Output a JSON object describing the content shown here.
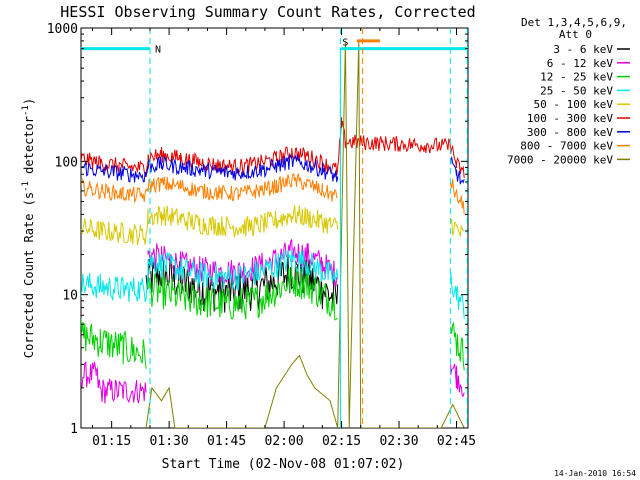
{
  "chart_data": {
    "type": "line",
    "title": "HESSI Observing Summary Count Rates, Corrected",
    "xlabel": "Start Time (02-Nov-08 01:07:02)",
    "ylabel": "Corrected Count Rate (s",
    "ylabel_sup": "-1",
    "ylabel_tail": " detector",
    "ylabel_end": ")",
    "xlim": [
      67.0,
      168.0
    ],
    "ylim": [
      1,
      1000
    ],
    "yscale": "log",
    "x_ticks": [
      75,
      90,
      105,
      120,
      135,
      150,
      165
    ],
    "x_tick_labels": [
      "01:15",
      "01:30",
      "01:45",
      "02:00",
      "02:15",
      "02:30",
      "02:45"
    ],
    "y_ticks": [
      1,
      10,
      100,
      1000
    ],
    "y_tick_labels": [
      "1",
      "10",
      "100",
      "1000"
    ],
    "legend": {
      "placement": "right",
      "header_line1": "Det 1,3,4,5,6,9,",
      "header_line2": "Att 0",
      "entries": [
        {
          "label": "3 - 6 keV",
          "color": "#000000"
        },
        {
          "label": "6 - 12 keV",
          "color": "#e000e0"
        },
        {
          "label": "12 - 25 keV",
          "color": "#00d000"
        },
        {
          "label": "25 - 50 keV",
          "color": "#00e8e8"
        },
        {
          "label": "50 - 100 keV",
          "color": "#d8c800"
        },
        {
          "label": "100 - 300 keV",
          "color": "#e00000"
        },
        {
          "label": "300 - 800 keV",
          "color": "#0000e0"
        },
        {
          "label": "800 - 7000 keV",
          "color": "#ff8000"
        },
        {
          "label": "7000 - 20000 keV",
          "color": "#808000"
        }
      ]
    },
    "annotations": {
      "night_label": "N",
      "saa_label": "S",
      "night_bar": {
        "x": [
          67.0,
          85.0
        ],
        "y": 700
      },
      "saa_bar": {
        "x": [
          134.7,
          168.0
        ],
        "y": 700
      },
      "saa_orange_bar": {
        "x": [
          139.0,
          145.0
        ],
        "y": 800
      },
      "dashed_lines_x": [
        85.0,
        134.7,
        140.5,
        163.4,
        167.8
      ],
      "solid_line_x": 134.7
    },
    "series": [
      {
        "name": "3 - 6 keV",
        "color": "#000000",
        "x": [
          84,
          88,
          93,
          98,
          103,
          108,
          113,
          118,
          122,
          126,
          130,
          134
        ],
        "y": [
          12.5,
          14.5,
          12.5,
          11,
          10.5,
          10.5,
          11,
          13,
          15,
          13.5,
          11,
          9
        ]
      },
      {
        "name": "6 - 12 keV",
        "color": "#e000e0",
        "x": [
          67,
          71,
          72,
          84,
          84.5,
          88,
          93,
          98,
          103,
          108,
          113,
          118,
          122,
          126,
          130,
          134,
          163.5,
          165,
          167
        ],
        "y": [
          2.5,
          2.5,
          1.9,
          1.9,
          20,
          19,
          17,
          15.5,
          15,
          15,
          16,
          18.5,
          21,
          20,
          17,
          14,
          3,
          2.5,
          2
        ]
      },
      {
        "name": "12 - 25 keV",
        "color": "#00d000",
        "x": [
          67,
          72,
          78,
          84,
          84.5,
          88,
          93,
          98,
          103,
          108,
          113,
          118,
          122,
          126,
          130,
          134,
          163.5,
          165,
          167
        ],
        "y": [
          5,
          4.5,
          4,
          3.5,
          11,
          10.5,
          9.5,
          9,
          8.5,
          8.5,
          9,
          11,
          13,
          12,
          10,
          8.5,
          5.5,
          4.5,
          3.5
        ]
      },
      {
        "name": "25 - 50 keV",
        "color": "#00e8e8",
        "x": [
          67,
          72,
          78,
          84,
          84.5,
          88,
          93,
          98,
          103,
          108,
          113,
          118,
          122,
          126,
          130,
          134,
          163.5,
          165,
          167
        ],
        "y": [
          12,
          11.5,
          11,
          11,
          18,
          17,
          15.5,
          14,
          13.5,
          13.5,
          14.5,
          16.5,
          18.5,
          17.5,
          15,
          13,
          13,
          10,
          8
        ]
      },
      {
        "name": "50 - 100 keV",
        "color": "#d8c800",
        "x": [
          67,
          72,
          78,
          84,
          84.5,
          88,
          93,
          98,
          103,
          108,
          113,
          118,
          122,
          126,
          130,
          134,
          163.5,
          165,
          167
        ],
        "y": [
          32,
          30,
          29,
          28,
          38,
          40,
          37,
          34,
          33,
          32,
          33,
          36,
          40,
          38,
          35,
          32,
          35,
          31,
          27
        ]
      },
      {
        "name": "100 - 300 keV",
        "color": "#e00000",
        "x": [
          67,
          72,
          78,
          84,
          84.5,
          88,
          93,
          98,
          103,
          108,
          113,
          118,
          122,
          126,
          130,
          134,
          135,
          136,
          163.5,
          165,
          167
        ],
        "y": [
          105,
          97,
          92,
          88,
          107,
          112,
          106,
          98,
          93,
          91,
          96,
          105,
          117,
          110,
          98,
          85,
          190,
          140,
          130,
          95,
          80
        ]
      },
      {
        "name": "300 - 800 keV",
        "color": "#0000e0",
        "x": [
          67,
          72,
          78,
          84,
          84.5,
          88,
          93,
          98,
          103,
          108,
          113,
          118,
          122,
          126,
          130,
          134,
          163.5,
          165,
          167
        ],
        "y": [
          90,
          85,
          81,
          78,
          92,
          95,
          91,
          86,
          83,
          82,
          85,
          92,
          100,
          95,
          86,
          76,
          95,
          82,
          65
        ]
      },
      {
        "name": "800 - 7000 keV",
        "color": "#ff8000",
        "x": [
          67,
          72,
          78,
          84,
          84.5,
          88,
          93,
          98,
          103,
          108,
          113,
          118,
          122,
          126,
          130,
          134,
          163.5,
          165,
          167
        ],
        "y": [
          64,
          60,
          57,
          55,
          66,
          68,
          65,
          60,
          58,
          57,
          60,
          65,
          72,
          68,
          60,
          54,
          70,
          55,
          45
        ]
      },
      {
        "name": "7000 - 20000 keV",
        "color": "#808000",
        "x": [
          84,
          85.5,
          88,
          90,
          91.5,
          115,
          118,
          122,
          124,
          126,
          128,
          132,
          134,
          136,
          137,
          139.5,
          140,
          161,
          164,
          167
        ],
        "y": [
          1,
          2,
          1.6,
          2,
          1,
          1,
          2,
          3,
          3.5,
          2.5,
          2,
          1.6,
          1,
          800,
          1,
          800,
          1,
          1,
          1.5,
          1
        ]
      }
    ]
  },
  "footer": {
    "timestamp": "14-Jan-2010 16:54"
  }
}
